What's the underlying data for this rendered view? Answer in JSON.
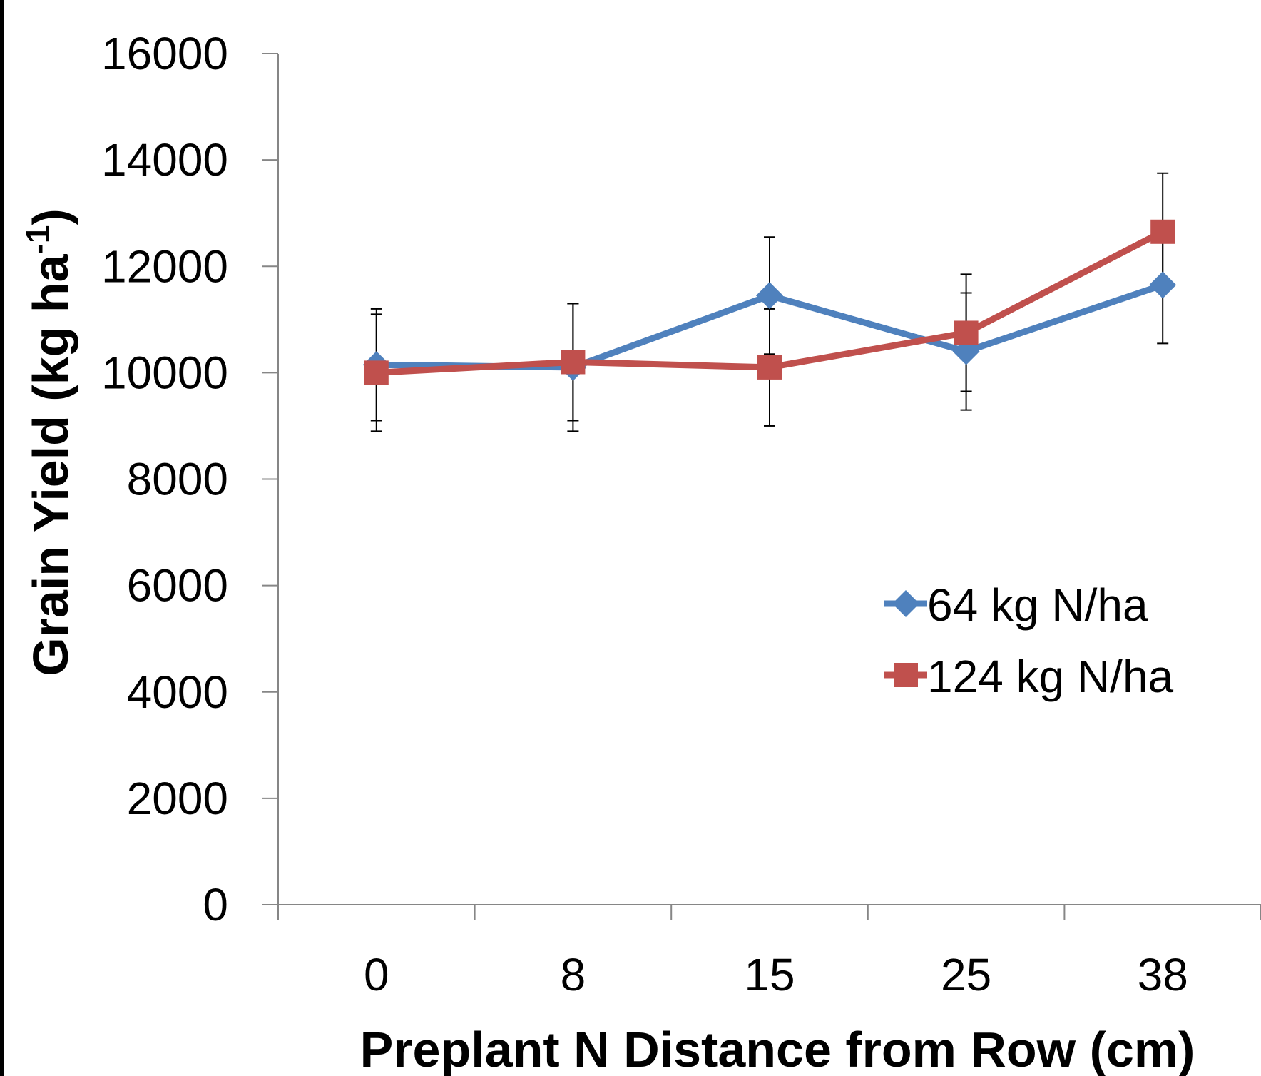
{
  "chart_data": {
    "type": "line",
    "title": "",
    "xlabel": "Preplant N Distance from Row (cm)",
    "ylabel_main": "Grain Yield (kg ha",
    "ylabel_sup": "-1",
    "ylabel_close": ")",
    "categories": [
      "0",
      "8",
      "15",
      "25",
      "38"
    ],
    "ylim": [
      0,
      16000
    ],
    "yticks": [
      "0",
      "2000",
      "4000",
      "6000",
      "8000",
      "10000",
      "12000",
      "14000",
      "16000"
    ],
    "ytick_values": [
      0,
      2000,
      4000,
      6000,
      8000,
      10000,
      12000,
      14000,
      16000
    ],
    "grid": false,
    "legend_position": "right",
    "series": [
      {
        "name": "64 kg N/ha",
        "marker": "diamond",
        "color": "#4f81bd",
        "values": [
          10150,
          10100,
          11450,
          10400,
          11650
        ],
        "error": [
          1050,
          1200,
          1100,
          1100,
          1100
        ]
      },
      {
        "name": "124 kg N/ha",
        "marker": "square",
        "color": "#c0504d",
        "values": [
          10000,
          10200,
          10100,
          10750,
          12650
        ],
        "error": [
          1100,
          1100,
          1100,
          1100,
          1100
        ]
      }
    ]
  }
}
